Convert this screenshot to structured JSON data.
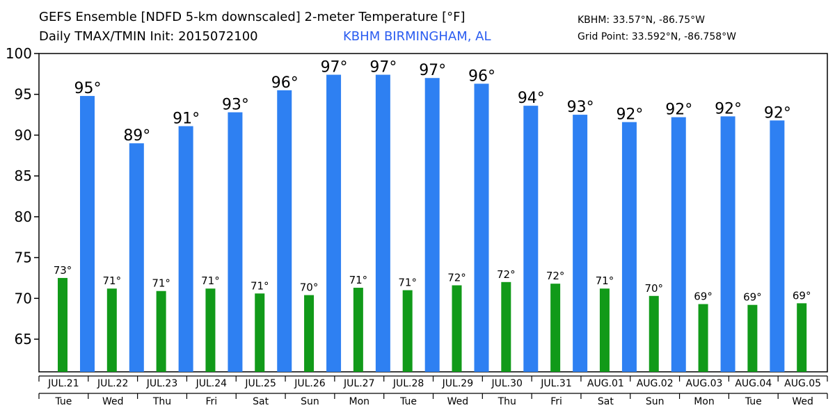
{
  "header": {
    "title_line1": "GEFS Ensemble [NDFD 5-km downscaled] 2-meter Temperature [°F]",
    "title_line2": "Daily TMAX/TMIN Init: 2015072100",
    "station_name": "KBHM BIRMINGHAM, AL",
    "station_coords": "KBHM: 33.57°N, -86.75°W",
    "grid_point": "Grid Point: 33.592°N, -86.758°W"
  },
  "colors": {
    "tmax_bar": "#2e80f2",
    "tmin_bar": "#119a19",
    "station_text": "#2a5cf0"
  },
  "chart_data": {
    "type": "bar",
    "ylim": [
      61,
      100
    ],
    "yticks": [
      65,
      70,
      75,
      80,
      85,
      90,
      95,
      100
    ],
    "grid": false,
    "categories": [
      "JUL.21",
      "JUL.22",
      "JUL.23",
      "JUL.24",
      "JUL.25",
      "JUL.26",
      "JUL.27",
      "JUL.28",
      "JUL.29",
      "JUL.30",
      "JUL.31",
      "AUG.01",
      "AUG.02",
      "AUG.03",
      "AUG.04",
      "AUG.05"
    ],
    "weekdays": [
      "Tue",
      "Wed",
      "Thu",
      "Fri",
      "Sat",
      "Sun",
      "Mon",
      "Tue",
      "Wed",
      "Thu",
      "Fri",
      "Sat",
      "Sun",
      "Mon",
      "Tue",
      "Wed"
    ],
    "tmin": {
      "values": [
        72.5,
        71.2,
        70.9,
        71.2,
        70.6,
        70.4,
        71.3,
        71.0,
        71.6,
        72.0,
        71.8,
        71.2,
        70.3,
        69.3,
        69.2,
        69.4
      ],
      "labels": [
        "73°",
        "71°",
        "71°",
        "71°",
        "71°",
        "70°",
        "71°",
        "71°",
        "72°",
        "72°",
        "72°",
        "71°",
        "70°",
        "69°",
        "69°",
        "69°"
      ]
    },
    "tmax": {
      "values": [
        94.8,
        89.0,
        91.1,
        92.8,
        95.5,
        97.4,
        97.4,
        97.0,
        96.3,
        93.6,
        92.5,
        91.6,
        92.2,
        92.3,
        91.8
      ],
      "labels": [
        "95°",
        "89°",
        "91°",
        "93°",
        "96°",
        "97°",
        "97°",
        "97°",
        "96°",
        "94°",
        "93°",
        "92°",
        "92°",
        "92°",
        "92°"
      ]
    }
  }
}
